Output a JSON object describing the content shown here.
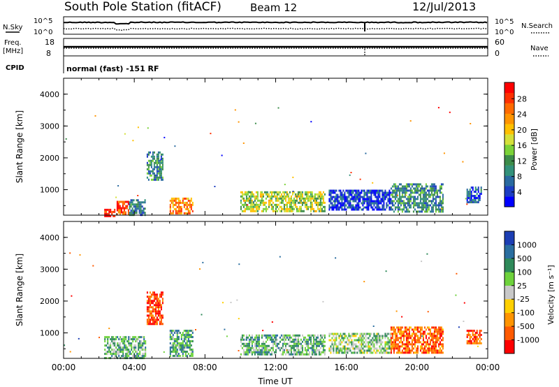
{
  "header": {
    "station": "South Pole Station (fitACF)",
    "beam": "Beam 12",
    "date": "12/Jul/2013"
  },
  "top_panels": {
    "nsky_label": "N.Sky",
    "nsky_ticks": [
      "10^5",
      "10^0"
    ],
    "nsearch_label": "N.Search",
    "nsearch_ticks": [
      "10^5",
      "10^0"
    ],
    "freq_label_1": "Freq.",
    "freq_label_2": "[MHz]",
    "freq_ticks": [
      "18",
      "8"
    ],
    "nave_label": "Nave",
    "nave_ticks": [
      "60",
      "0"
    ],
    "cpid_label": "CPID",
    "cpid_text": "normal (fast) -151 RF"
  },
  "chart_data": [
    {
      "type": "heatmap",
      "name": "power-panel",
      "ylabel": "Slant Range [km]",
      "ylim": [
        200,
        4500
      ],
      "yticks": [
        "1000",
        "2000",
        "3000",
        "4000"
      ],
      "xlim_hours": [
        0,
        24
      ],
      "colorbar_label": "Power [dB]",
      "colorbar_ticks": [
        "28",
        "24",
        "20",
        "16",
        "12",
        "8",
        "4"
      ],
      "colorbar_colors": [
        "#0000ff",
        "#1d3ec2",
        "#2a6aa0",
        "#33917a",
        "#3c8c4a",
        "#7bd238",
        "#d4e03a",
        "#ffc000",
        "#ff9400",
        "#ff6a00",
        "#ff3000",
        "#ff0000"
      ],
      "regions": [
        {
          "t0": 2.3,
          "t1": 2.9,
          "r0": 200,
          "r1": 400,
          "level": 0.95
        },
        {
          "t0": 3.0,
          "t1": 3.7,
          "r0": 250,
          "r1": 650,
          "level": 0.85
        },
        {
          "t0": 3.7,
          "t1": 4.6,
          "r0": 200,
          "r1": 700,
          "level": 0.25
        },
        {
          "t0": 4.7,
          "t1": 5.6,
          "r0": 1300,
          "r1": 2200,
          "level": 0.3
        },
        {
          "t0": 6.0,
          "t1": 7.3,
          "r0": 250,
          "r1": 750,
          "level": 0.75
        },
        {
          "t0": 10.0,
          "t1": 14.8,
          "r0": 350,
          "r1": 950,
          "level": 0.5
        },
        {
          "t0": 15.0,
          "t1": 18.5,
          "r0": 400,
          "r1": 1000,
          "level": 0.12
        },
        {
          "t0": 18.5,
          "t1": 21.5,
          "r0": 300,
          "r1": 1200,
          "level": 0.3
        },
        {
          "t0": 22.8,
          "t1": 23.6,
          "r0": 600,
          "r1": 1100,
          "level": 0.18
        }
      ]
    },
    {
      "type": "heatmap",
      "name": "velocity-panel",
      "ylabel": "Slant Range [km]",
      "ylim": [
        200,
        4500
      ],
      "yticks": [
        "1000",
        "2000",
        "3000",
        "4000"
      ],
      "xlim_hours": [
        0,
        24
      ],
      "xticks": [
        "00:00",
        "04:00",
        "08:00",
        "12:00",
        "16:00",
        "20:00",
        "00:00"
      ],
      "xlabel": "Time UT",
      "colorbar_label": "Velocity [m s⁻¹]",
      "colorbar_ticks": [
        "1000",
        "500",
        "100",
        "25",
        "-25",
        "-100",
        "-500",
        "-1000"
      ],
      "colorbar_colors": [
        "#ff0000",
        "#ff5a00",
        "#ff9400",
        "#ffd000",
        "#c8c8c8",
        "#6ed23c",
        "#2f8a5a",
        "#2a6ea0",
        "#1c3eb4"
      ],
      "regions": [
        {
          "t0": 2.3,
          "t1": 4.6,
          "r0": 200,
          "r1": 900,
          "level": 0.65
        },
        {
          "t0": 4.7,
          "t1": 5.6,
          "r0": 1300,
          "r1": 2300,
          "level": 0.12
        },
        {
          "t0": 6.0,
          "t1": 7.3,
          "r0": 250,
          "r1": 1100,
          "level": 0.7
        },
        {
          "t0": 10.0,
          "t1": 14.8,
          "r0": 300,
          "r1": 950,
          "level": 0.65
        },
        {
          "t0": 15.0,
          "t1": 18.5,
          "r0": 400,
          "r1": 1000,
          "level": 0.58
        },
        {
          "t0": 18.5,
          "t1": 21.5,
          "r0": 400,
          "r1": 1200,
          "level": 0.18
        },
        {
          "t0": 22.8,
          "t1": 23.6,
          "r0": 700,
          "r1": 1100,
          "level": 0.15
        }
      ]
    }
  ]
}
